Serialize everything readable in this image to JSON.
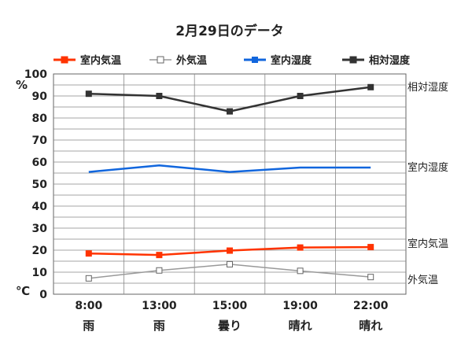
{
  "chart_data": {
    "type": "line",
    "title": "2月29日のデータ",
    "y_unit_top": "%",
    "y_unit_bottom": "℃",
    "ylim": [
      0,
      100
    ],
    "y_ticks": [
      "0",
      "10",
      "20",
      "30",
      "40",
      "50",
      "60",
      "70",
      "80",
      "90",
      "100"
    ],
    "categories": [
      "8:00",
      "13:00",
      "15:00",
      "19:00",
      "22:00"
    ],
    "weather": [
      "雨",
      "雨",
      "曇り",
      "晴れ",
      "晴れ"
    ],
    "grid": true,
    "legend_position": "top",
    "series": [
      {
        "name": "室内気温",
        "end_label": "室内気温",
        "color": "#ff3300",
        "marker": "filled",
        "values": [
          18.5,
          17.8,
          19.8,
          21.2,
          21.4
        ]
      },
      {
        "name": "外気温",
        "end_label": "外気温",
        "color": "#999999",
        "marker": "hollow",
        "values": [
          7.2,
          10.8,
          13.6,
          10.6,
          7.8
        ]
      },
      {
        "name": "室内湿度",
        "end_label": "室内湿度",
        "color": "#1166dd",
        "marker": "none",
        "values": [
          55.5,
          58.5,
          55.5,
          57.5,
          57.5
        ]
      },
      {
        "name": "相対湿度",
        "end_label": "相対湿度",
        "color": "#333333",
        "marker": "filled",
        "values": [
          91,
          90,
          83,
          90,
          94
        ]
      }
    ]
  }
}
